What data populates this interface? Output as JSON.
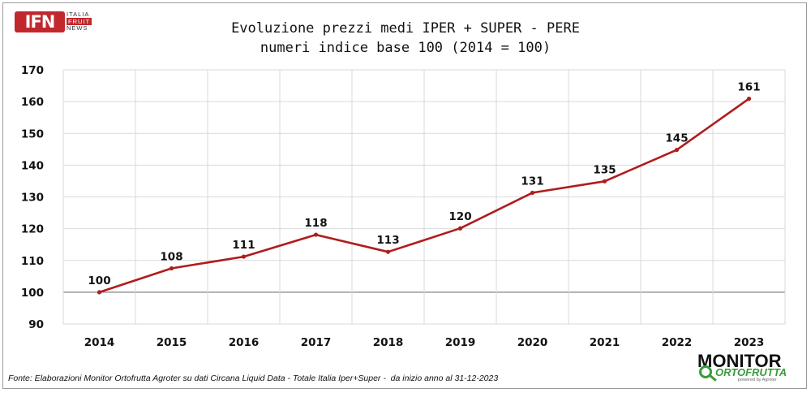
{
  "logo": {
    "mark": "IFN",
    "line1": "ITALIA",
    "line2": "FRUIT",
    "line3": "NEWS"
  },
  "title_line1": "Evoluzione prezzi medi IPER + SUPER - PERE",
  "title_line2": "numeri indice base 100 (2014 = 100)",
  "source": "Fonte: Elaborazioni Monitor Ortofrutta Agroter su dati Circana Liquid Data - Totale Italia Iper+Super -  da inizio anno al 31-12-2023",
  "brand": {
    "top": "MONITOR",
    "bottom": "ORTOFRUTTA",
    "sub": "powered by Agroter"
  },
  "colors": {
    "line": "#b01c1c",
    "grid": "#d9d9d9",
    "baseline": "#808080"
  },
  "chart_data": {
    "type": "line",
    "title": "Evoluzione prezzi medi IPER + SUPER - PERE",
    "subtitle": "numeri indice base 100 (2014 = 100)",
    "xlabel": "",
    "ylabel": "",
    "categories": [
      "2014",
      "2015",
      "2016",
      "2017",
      "2018",
      "2019",
      "2020",
      "2021",
      "2022",
      "2023"
    ],
    "values": [
      100,
      107.5,
      111.2,
      118.1,
      112.7,
      120.1,
      131.3,
      134.9,
      144.8,
      160.9
    ],
    "data_labels": [
      "100",
      "108",
      "111",
      "118",
      "113",
      "120",
      "131",
      "135",
      "145",
      "161"
    ],
    "ylim": [
      90,
      170
    ],
    "yticks": [
      90,
      100,
      110,
      120,
      130,
      140,
      150,
      160,
      170
    ],
    "grid": true,
    "legend": "none"
  }
}
